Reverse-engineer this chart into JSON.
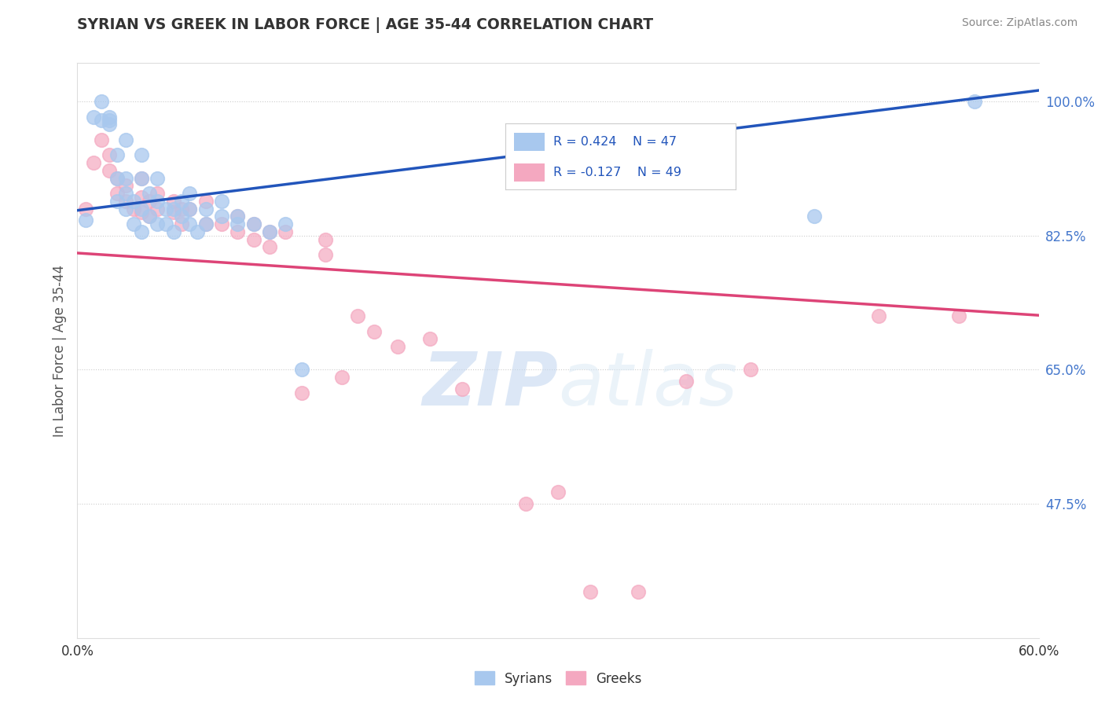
{
  "title": "SYRIAN VS GREEK IN LABOR FORCE | AGE 35-44 CORRELATION CHART",
  "source": "Source: ZipAtlas.com",
  "ylabel": "In Labor Force | Age 35-44",
  "xmin": 0.0,
  "xmax": 0.6,
  "ymin": 0.3,
  "ymax": 1.05,
  "background_color": "#ffffff",
  "syrian_color": "#a8c8ee",
  "greek_color": "#f4a8c0",
  "syrian_R": 0.424,
  "syrian_N": 47,
  "greek_R": -0.127,
  "greek_N": 49,
  "syrian_line_color": "#2255bb",
  "greek_line_color": "#dd4477",
  "syrian_x": [
    0.005,
    0.01,
    0.015,
    0.015,
    0.02,
    0.02,
    0.02,
    0.025,
    0.025,
    0.025,
    0.03,
    0.03,
    0.03,
    0.03,
    0.035,
    0.035,
    0.04,
    0.04,
    0.04,
    0.04,
    0.045,
    0.045,
    0.05,
    0.05,
    0.05,
    0.055,
    0.055,
    0.06,
    0.06,
    0.065,
    0.065,
    0.07,
    0.07,
    0.07,
    0.075,
    0.08,
    0.08,
    0.09,
    0.09,
    0.1,
    0.1,
    0.11,
    0.12,
    0.13,
    0.14,
    0.46,
    0.56
  ],
  "syrian_y": [
    0.845,
    0.98,
    0.975,
    1.0,
    0.97,
    0.975,
    0.98,
    0.87,
    0.9,
    0.93,
    0.86,
    0.88,
    0.9,
    0.95,
    0.84,
    0.87,
    0.83,
    0.86,
    0.9,
    0.93,
    0.85,
    0.88,
    0.84,
    0.87,
    0.9,
    0.84,
    0.86,
    0.83,
    0.86,
    0.85,
    0.87,
    0.84,
    0.86,
    0.88,
    0.83,
    0.84,
    0.86,
    0.85,
    0.87,
    0.84,
    0.85,
    0.84,
    0.83,
    0.84,
    0.65,
    0.85,
    1.0
  ],
  "greek_x": [
    0.005,
    0.01,
    0.015,
    0.02,
    0.02,
    0.025,
    0.025,
    0.03,
    0.03,
    0.035,
    0.04,
    0.04,
    0.04,
    0.045,
    0.045,
    0.05,
    0.05,
    0.06,
    0.06,
    0.065,
    0.065,
    0.07,
    0.08,
    0.08,
    0.09,
    0.1,
    0.1,
    0.11,
    0.11,
    0.12,
    0.12,
    0.13,
    0.14,
    0.155,
    0.155,
    0.165,
    0.175,
    0.185,
    0.2,
    0.22,
    0.24,
    0.28,
    0.3,
    0.32,
    0.35,
    0.38,
    0.42,
    0.5,
    0.55
  ],
  "greek_y": [
    0.86,
    0.92,
    0.95,
    0.91,
    0.93,
    0.88,
    0.9,
    0.87,
    0.89,
    0.86,
    0.855,
    0.875,
    0.9,
    0.85,
    0.87,
    0.86,
    0.88,
    0.855,
    0.87,
    0.84,
    0.86,
    0.86,
    0.84,
    0.87,
    0.84,
    0.83,
    0.85,
    0.82,
    0.84,
    0.81,
    0.83,
    0.83,
    0.62,
    0.8,
    0.82,
    0.64,
    0.72,
    0.7,
    0.68,
    0.69,
    0.625,
    0.475,
    0.49,
    0.36,
    0.36,
    0.635,
    0.65,
    0.72,
    0.72
  ]
}
